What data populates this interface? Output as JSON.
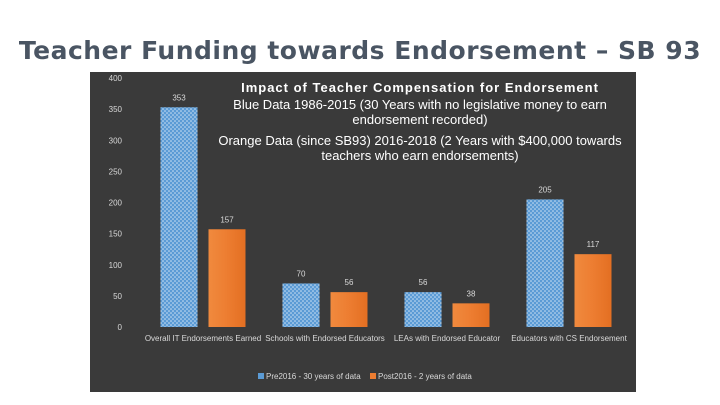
{
  "slide": {
    "title": "Teacher Funding towards Endorsement – SB 93"
  },
  "chart_data": {
    "type": "bar",
    "title": "Impact of Teacher Compensation for Endorsement",
    "subtitle_lines": [
      "Blue Data 1986-2015 (30 Years with no legislative money to earn endorsement recorded)",
      "Orange Data (since SB93) 2016-2018 (2 Years with $400,000 towards teachers who earn endorsements)"
    ],
    "categories": [
      "Overall IT Endorsements Earned",
      "Schools with Endorsed Educators",
      "LEAs with Endorsed Educator",
      "Educators with CS Endorsement"
    ],
    "series": [
      {
        "name": "Pre2016 - 30 years of data",
        "color": "#5b9bd5",
        "values": [
          353,
          70,
          56,
          205
        ]
      },
      {
        "name": "Post2016 - 2 years of data",
        "color": "#ed7d31",
        "values": [
          157,
          56,
          38,
          117
        ]
      }
    ],
    "ylim": [
      0,
      400
    ],
    "yticks": [
      0,
      50,
      100,
      150,
      200,
      250,
      300,
      350,
      400
    ],
    "data_labels": true,
    "legend_position": "bottom",
    "grid": false
  }
}
